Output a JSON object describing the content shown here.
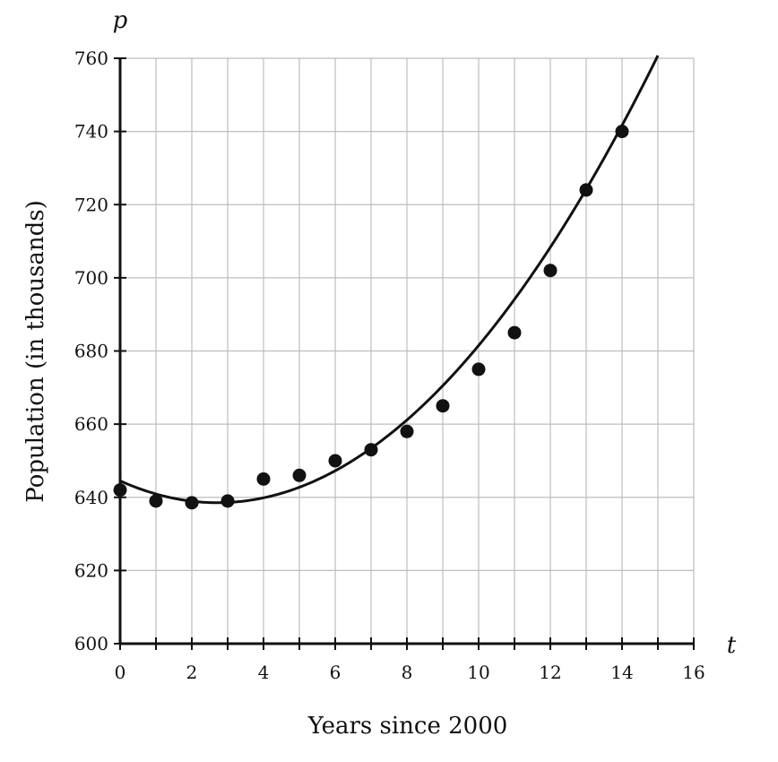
{
  "chart_data": {
    "type": "scatter",
    "xlabel": "Years since 2000",
    "ylabel": "Population (in thousands)",
    "x_var": "t",
    "y_var": "p",
    "xlim": [
      0,
      16
    ],
    "ylim": [
      600,
      760
    ],
    "x_ticks": [
      0,
      2,
      4,
      6,
      8,
      10,
      12,
      14,
      16
    ],
    "y_ticks": [
      600,
      620,
      640,
      660,
      680,
      700,
      720,
      740,
      760
    ],
    "x_grid_step": 1,
    "grid": true,
    "points": [
      {
        "t": 0,
        "p": 642
      },
      {
        "t": 1,
        "p": 639
      },
      {
        "t": 2,
        "p": 638.5
      },
      {
        "t": 3,
        "p": 639
      },
      {
        "t": 4,
        "p": 645
      },
      {
        "t": 5,
        "p": 646
      },
      {
        "t": 6,
        "p": 650
      },
      {
        "t": 7,
        "p": 653
      },
      {
        "t": 8,
        "p": 658
      },
      {
        "t": 9,
        "p": 665
      },
      {
        "t": 10,
        "p": 675
      },
      {
        "t": 11,
        "p": 685
      },
      {
        "t": 12,
        "p": 702
      },
      {
        "t": 13,
        "p": 724
      },
      {
        "t": 14,
        "p": 740
      }
    ],
    "fit_curve": {
      "kind": "quadratic",
      "coefficients": {
        "a": 0.81,
        "b": -4.4,
        "c": 644.5
      },
      "t_range": [
        0,
        15
      ]
    }
  }
}
